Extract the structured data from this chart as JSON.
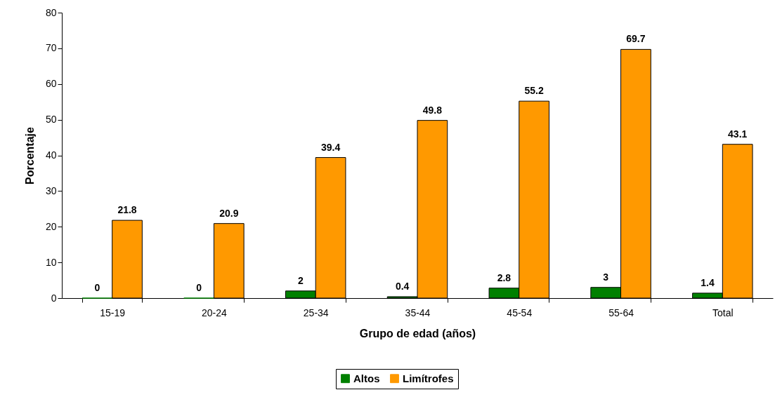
{
  "chart_data": {
    "type": "bar",
    "xlabel": "Grupo de edad (años)",
    "ylabel": "Porcentaje",
    "categories": [
      "15-19",
      "20-24",
      "25-34",
      "35-44",
      "45-54",
      "55-64",
      "Total"
    ],
    "series": [
      {
        "name": "Altos",
        "color": "#008000",
        "values": [
          0,
          0,
          2,
          0.4,
          2.8,
          3,
          1.4
        ]
      },
      {
        "name": "Limítrofes",
        "color": "#ff9900",
        "values": [
          21.8,
          20.9,
          39.4,
          49.8,
          55.2,
          69.7,
          43.1
        ]
      }
    ],
    "ylim": [
      0,
      80
    ],
    "yticks": [
      0,
      10,
      20,
      30,
      40,
      50,
      60,
      70,
      80
    ],
    "grid": false,
    "legend": "bottom",
    "data_labels": true
  }
}
